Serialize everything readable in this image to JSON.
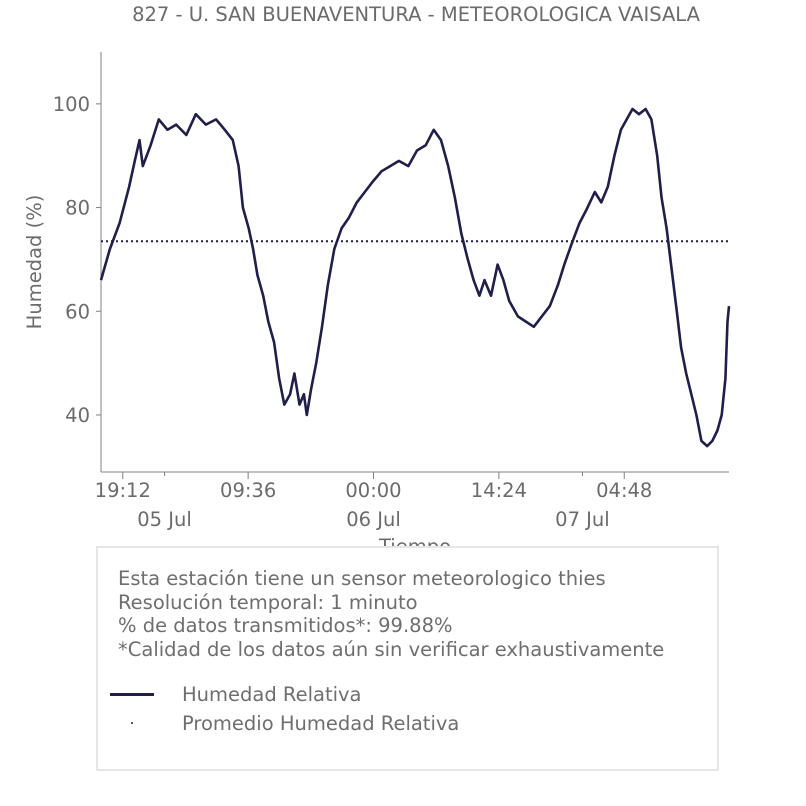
{
  "chart_data": {
    "type": "line",
    "title": "827 - U. SAN BUENAVENTURA - METEOROLOGICA VAISALA",
    "xlabel": "Tiempo",
    "ylabel": "Humedad (%)",
    "ylim": [
      29,
      110
    ],
    "yticks": [
      40,
      60,
      80,
      100
    ],
    "x_range": [
      "2024-07-04T16:42",
      "2024-07-07T16:50"
    ],
    "x_ticks": [
      {
        "t": "2024-07-04T19:12",
        "label": "19:12"
      },
      {
        "t": "2024-07-05T09:36",
        "label": "09:36"
      },
      {
        "t": "2024-07-06T00:00",
        "label": "00:00"
      },
      {
        "t": "2024-07-06T14:24",
        "label": "14:24"
      },
      {
        "t": "2024-07-07T04:48",
        "label": "04:48"
      }
    ],
    "x_minor_ticks": [
      {
        "t": "2024-07-05T00:00",
        "label": "05 Jul"
      },
      {
        "t": "2024-07-06T00:00",
        "label": "06 Jul"
      },
      {
        "t": "2024-07-07T00:00",
        "label": "07 Jul"
      }
    ],
    "series": [
      {
        "name": "Humedad Relativa",
        "color": "#1f1f47",
        "points": [
          [
            "2024-07-04T16:42",
            66
          ],
          [
            "2024-07-04T17:43",
            72
          ],
          [
            "2024-07-04T18:50",
            77
          ],
          [
            "2024-07-04T19:56",
            84
          ],
          [
            "2024-07-04T20:35",
            89
          ],
          [
            "2024-07-04T21:07",
            93
          ],
          [
            "2024-07-04T21:30",
            88
          ],
          [
            "2024-07-04T22:24",
            92
          ],
          [
            "2024-07-04T23:20",
            97
          ],
          [
            "2024-07-05T00:20",
            95
          ],
          [
            "2024-07-05T01:20",
            96
          ],
          [
            "2024-07-05T02:30",
            94
          ],
          [
            "2024-07-05T03:35",
            98
          ],
          [
            "2024-07-05T04:45",
            96
          ],
          [
            "2024-07-05T05:55",
            97
          ],
          [
            "2024-07-05T06:55",
            95
          ],
          [
            "2024-07-05T07:50",
            93
          ],
          [
            "2024-07-05T08:30",
            88
          ],
          [
            "2024-07-05T09:00",
            80
          ],
          [
            "2024-07-05T09:40",
            76
          ],
          [
            "2024-07-05T10:10",
            72
          ],
          [
            "2024-07-05T10:40",
            67
          ],
          [
            "2024-07-05T11:20",
            63
          ],
          [
            "2024-07-05T11:55",
            58
          ],
          [
            "2024-07-05T12:35",
            54
          ],
          [
            "2024-07-05T13:10",
            47
          ],
          [
            "2024-07-05T13:45",
            42
          ],
          [
            "2024-07-05T14:25",
            44
          ],
          [
            "2024-07-05T14:55",
            48
          ],
          [
            "2024-07-05T15:30",
            42
          ],
          [
            "2024-07-05T16:00",
            44
          ],
          [
            "2024-07-05T16:20",
            40
          ],
          [
            "2024-07-05T16:50",
            45
          ],
          [
            "2024-07-05T17:25",
            50
          ],
          [
            "2024-07-05T18:05",
            57
          ],
          [
            "2024-07-05T18:45",
            65
          ],
          [
            "2024-07-05T19:30",
            72
          ],
          [
            "2024-07-05T20:20",
            76
          ],
          [
            "2024-07-05T21:10",
            78
          ],
          [
            "2024-07-05T22:05",
            81
          ],
          [
            "2024-07-05T23:00",
            83
          ],
          [
            "2024-07-05T23:55",
            85
          ],
          [
            "2024-07-06T00:55",
            87
          ],
          [
            "2024-07-06T01:55",
            88
          ],
          [
            "2024-07-06T02:55",
            89
          ],
          [
            "2024-07-06T04:00",
            88
          ],
          [
            "2024-07-06T05:00",
            91
          ],
          [
            "2024-07-06T06:00",
            92
          ],
          [
            "2024-07-06T06:55",
            95
          ],
          [
            "2024-07-06T07:45",
            93
          ],
          [
            "2024-07-06T08:35",
            88
          ],
          [
            "2024-07-06T09:20",
            82
          ],
          [
            "2024-07-06T10:05",
            75
          ],
          [
            "2024-07-06T10:50",
            70
          ],
          [
            "2024-07-06T11:30",
            66
          ],
          [
            "2024-07-06T12:10",
            63
          ],
          [
            "2024-07-06T12:45",
            66
          ],
          [
            "2024-07-06T13:30",
            63
          ],
          [
            "2024-07-06T14:15",
            69
          ],
          [
            "2024-07-06T14:55",
            66
          ],
          [
            "2024-07-06T15:35",
            62
          ],
          [
            "2024-07-06T16:35",
            59
          ],
          [
            "2024-07-06T17:30",
            58
          ],
          [
            "2024-07-06T18:25",
            57
          ],
          [
            "2024-07-06T19:20",
            59
          ],
          [
            "2024-07-06T20:15",
            61
          ],
          [
            "2024-07-06T21:10",
            65
          ],
          [
            "2024-07-06T21:55",
            69
          ],
          [
            "2024-07-06T22:45",
            73
          ],
          [
            "2024-07-06T23:40",
            77
          ],
          [
            "2024-07-07T00:35",
            80
          ],
          [
            "2024-07-07T01:25",
            83
          ],
          [
            "2024-07-07T02:10",
            81
          ],
          [
            "2024-07-07T02:55",
            84
          ],
          [
            "2024-07-07T03:40",
            90
          ],
          [
            "2024-07-07T04:25",
            95
          ],
          [
            "2024-07-07T05:05",
            97
          ],
          [
            "2024-07-07T05:45",
            99
          ],
          [
            "2024-07-07T06:30",
            98
          ],
          [
            "2024-07-07T07:15",
            99
          ],
          [
            "2024-07-07T07:55",
            97
          ],
          [
            "2024-07-07T08:35",
            90
          ],
          [
            "2024-07-07T09:05",
            82
          ],
          [
            "2024-07-07T09:40",
            76
          ],
          [
            "2024-07-07T10:15",
            68
          ],
          [
            "2024-07-07T10:50",
            60
          ],
          [
            "2024-07-07T11:20",
            53
          ],
          [
            "2024-07-07T11:55",
            48
          ],
          [
            "2024-07-07T12:30",
            44
          ],
          [
            "2024-07-07T13:05",
            40
          ],
          [
            "2024-07-07T13:40",
            35
          ],
          [
            "2024-07-07T14:20",
            34
          ],
          [
            "2024-07-07T14:55",
            35
          ],
          [
            "2024-07-07T15:30",
            37
          ],
          [
            "2024-07-07T16:00",
            40
          ],
          [
            "2024-07-07T16:25",
            47
          ],
          [
            "2024-07-07T16:40",
            58
          ],
          [
            "2024-07-07T16:50",
            61
          ]
        ]
      }
    ],
    "mean_line": {
      "name": "Promedio Humedad Relativa",
      "value": 73.5,
      "style": "dotted",
      "color": "#1f1f47"
    },
    "grid": false,
    "legend": "bottom (in info box)"
  },
  "info_box": {
    "lines": [
      "Esta estación tiene un sensor meteorologico thies",
      "Resolución temporal: 1 minuto",
      "% de datos transmitidos*: 99.88%",
      "*Calidad de los datos aún sin verificar exhaustivamente"
    ],
    "legend": [
      {
        "label": "Humedad Relativa",
        "symbol": "line"
      },
      {
        "label": "Promedio Humedad Relativa",
        "symbol": "dot"
      }
    ]
  }
}
